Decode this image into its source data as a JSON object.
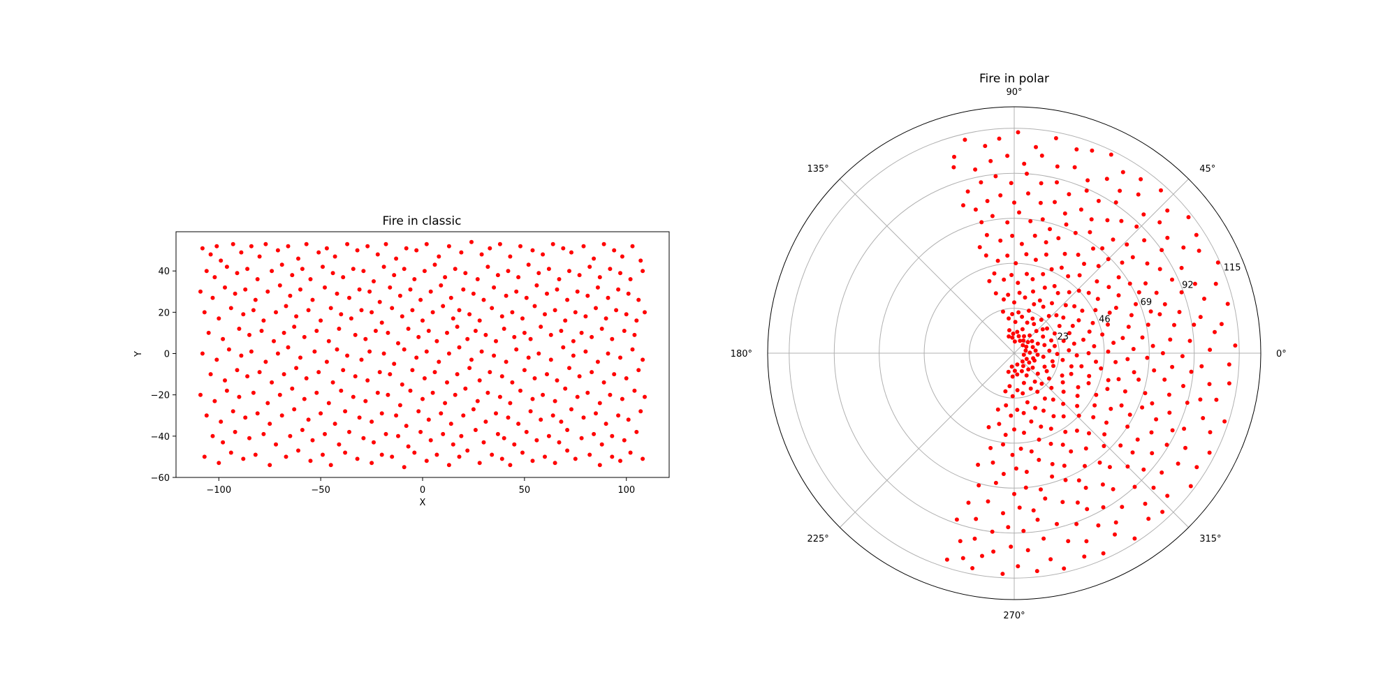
{
  "chart_data": [
    {
      "type": "scatter",
      "title": "Fire in classic",
      "xlabel": "X",
      "ylabel": "Y",
      "xlim": [
        -121,
        121
      ],
      "ylim": [
        -60,
        59
      ],
      "x_ticks": [
        -100,
        -50,
        0,
        50,
        100
      ],
      "x_tick_labels": [
        "−100",
        "−50",
        "0",
        "50",
        "100"
      ],
      "y_ticks": [
        -60,
        -40,
        -20,
        0,
        20,
        40
      ],
      "y_tick_labels": [
        "−60",
        "−40",
        "−20",
        "0",
        "20",
        "40"
      ],
      "grid": false,
      "marker_color": "#ff0000",
      "series": [
        {
          "x": [
            -108,
            -104,
            -101,
            -99,
            -93,
            -89,
            -84,
            -80,
            -77,
            -71,
            -66,
            -61,
            -57,
            -51,
            -47,
            -43,
            -37,
            -32,
            -27,
            -22,
            -18,
            -13,
            -8,
            -3,
            2,
            8,
            13,
            19,
            24,
            29,
            33,
            38,
            43,
            48,
            54,
            59,
            64,
            69,
            73,
            79,
            84,
            89,
            94,
            98,
            103,
            107,
            -106,
            -102,
            -96,
            -91,
            -86,
            -81,
            -74,
            -69,
            -64,
            -59,
            -55,
            -49,
            -44,
            -39,
            -34,
            -29,
            -24,
            -19,
            -14,
            -9,
            -4,
            1,
            6,
            11,
            16,
            21,
            27,
            32,
            37,
            42,
            47,
            52,
            57,
            62,
            67,
            72,
            77,
            82,
            87,
            92,
            97,
            102,
            108,
            -109,
            -103,
            -97,
            -92,
            -87,
            -82,
            -76,
            -70,
            -65,
            -60,
            -54,
            -48,
            -42,
            -36,
            -31,
            -26,
            -21,
            -16,
            -11,
            -6,
            -1,
            4,
            9,
            14,
            20,
            25,
            30,
            35,
            41,
            46,
            51,
            56,
            61,
            66,
            71,
            76,
            81,
            86,
            91,
            96,
            101,
            106,
            -107,
            -100,
            -94,
            -88,
            -83,
            -78,
            -72,
            -67,
            -62,
            -56,
            -50,
            -45,
            -40,
            -35,
            -30,
            -25,
            -20,
            -15,
            -10,
            -5,
            0,
            5,
            10,
            15,
            18,
            23,
            28,
            34,
            39,
            44,
            49,
            55,
            60,
            65,
            70,
            75,
            80,
            85,
            90,
            95,
            100,
            105,
            109,
            -105,
            -98,
            -90,
            -85,
            -79,
            -73,
            -68,
            -63,
            -58,
            -52,
            -46,
            -41,
            -33,
            -28,
            -23,
            -17,
            -12,
            -7,
            -2,
            3,
            7,
            12,
            17,
            22,
            26,
            31,
            36,
            40,
            45,
            50,
            53,
            58,
            63,
            68,
            74,
            78,
            83,
            88,
            93,
            99,
            104,
            -108,
            -101,
            -95,
            -89,
            -84,
            -77,
            -71,
            -66,
            -60,
            -53,
            -47,
            -42,
            -37,
            -30,
            -26,
            -19,
            -14,
            -9,
            -3,
            2,
            8,
            13,
            18,
            24,
            29,
            35,
            41,
            46,
            52,
            57,
            63,
            69,
            74,
            80,
            86,
            91,
            97,
            103,
            108,
            -104,
            -97,
            -91,
            -86,
            -80,
            -74,
            -68,
            -62,
            -57,
            -51,
            -44,
            -39,
            -33,
            -27,
            -21,
            -16,
            -10,
            -5,
            1,
            6,
            12,
            17,
            23,
            28,
            33,
            39,
            44,
            50,
            55,
            61,
            66,
            72,
            77,
            83,
            89,
            94,
            100,
            106,
            -109,
            -102,
            -96,
            -90,
            -83,
            -76,
            -70,
            -64,
            -58,
            -52,
            -46,
            -40,
            -34,
            -28,
            -22,
            -17,
            -11,
            -6,
            0,
            5,
            11,
            16,
            21,
            27,
            32,
            38,
            43,
            48,
            54,
            59,
            65,
            70,
            76,
            81,
            87,
            92,
            98,
            104,
            109,
            -106,
            -99,
            -93,
            -87,
            -81,
            -75,
            -69,
            -63,
            -56,
            -50,
            -43,
            -38,
            -31,
            -25,
            -20,
            -13,
            -8,
            -2,
            3,
            9,
            14,
            20,
            25,
            31,
            36,
            42,
            47,
            53,
            58,
            64,
            68,
            73,
            79,
            85,
            90,
            96,
            101,
            107,
            -103,
            -98,
            -92,
            -85,
            -78,
            -72,
            -65,
            -59,
            -54,
            -48,
            -41,
            -36,
            -29,
            -24,
            -18,
            -12,
            -7,
            -1,
            4,
            10,
            15,
            19,
            26,
            30,
            37,
            40,
            45,
            51,
            56,
            62,
            67,
            71,
            78,
            84,
            88,
            93,
            99,
            105,
            -107,
            -100,
            -94,
            -88,
            -82,
            -75,
            -67,
            -61,
            -55,
            -49,
            -45,
            -38,
            -32,
            -25,
            -20,
            -15,
            -9,
            -4,
            2,
            7,
            13,
            18,
            22,
            28,
            34,
            39,
            43,
            49,
            54,
            60,
            65,
            71,
            75,
            82,
            87,
            93,
            97,
            102,
            108
          ],
          "y": [
            51,
            48,
            52,
            45,
            53,
            49,
            52,
            47,
            53,
            50,
            52,
            46,
            53,
            49,
            51,
            47,
            53,
            50,
            52,
            48,
            53,
            46,
            51,
            50,
            53,
            47,
            52,
            49,
            54,
            48,
            51,
            53,
            47,
            52,
            50,
            48,
            53,
            51,
            49,
            52,
            46,
            53,
            50,
            47,
            52,
            45,
            40,
            37,
            42,
            39,
            41,
            36,
            40,
            43,
            38,
            41,
            36,
            42,
            39,
            37,
            41,
            40,
            35,
            42,
            38,
            41,
            36,
            40,
            43,
            37,
            41,
            39,
            36,
            42,
            38,
            40,
            37,
            43,
            39,
            41,
            36,
            40,
            38,
            42,
            37,
            41,
            39,
            36,
            40,
            30,
            27,
            32,
            29,
            31,
            26,
            30,
            33,
            28,
            31,
            26,
            32,
            29,
            27,
            31,
            30,
            25,
            32,
            28,
            31,
            26,
            30,
            33,
            27,
            31,
            29,
            26,
            32,
            28,
            30,
            27,
            33,
            29,
            31,
            26,
            30,
            28,
            32,
            27,
            31,
            29,
            26,
            20,
            17,
            22,
            19,
            21,
            16,
            20,
            23,
            18,
            21,
            16,
            22,
            19,
            17,
            21,
            20,
            15,
            22,
            18,
            21,
            16,
            20,
            23,
            17,
            21,
            19,
            16,
            22,
            18,
            20,
            17,
            23,
            19,
            21,
            16,
            20,
            18,
            22,
            17,
            21,
            19,
            16,
            20,
            10,
            7,
            12,
            9,
            11,
            6,
            10,
            13,
            8,
            11,
            6,
            12,
            9,
            7,
            11,
            10,
            5,
            12,
            8,
            11,
            6,
            10,
            13,
            7,
            11,
            9,
            6,
            12,
            8,
            10,
            7,
            13,
            9,
            11,
            6,
            10,
            8,
            12,
            7,
            11,
            9,
            0,
            -3,
            2,
            -1,
            1,
            -4,
            0,
            3,
            -2,
            1,
            -4,
            2,
            -1,
            -3,
            1,
            0,
            -5,
            2,
            -2,
            1,
            -4,
            0,
            3,
            -3,
            1,
            -1,
            -4,
            2,
            -2,
            0,
            -3,
            3,
            -1,
            1,
            -4,
            0,
            -2,
            2,
            -3,
            -10,
            -13,
            -8,
            -11,
            -9,
            -14,
            -10,
            -7,
            -12,
            -9,
            -14,
            -8,
            -11,
            -13,
            -9,
            -10,
            -15,
            -8,
            -12,
            -9,
            -14,
            -10,
            -7,
            -13,
            -9,
            -11,
            -14,
            -8,
            -12,
            -10,
            -13,
            -7,
            -11,
            -9,
            -14,
            -10,
            -12,
            -8,
            -20,
            -23,
            -18,
            -21,
            -19,
            -24,
            -20,
            -17,
            -22,
            -19,
            -24,
            -18,
            -21,
            -23,
            -19,
            -20,
            -25,
            -18,
            -22,
            -19,
            -24,
            -20,
            -17,
            -23,
            -19,
            -21,
            -24,
            -18,
            -22,
            -20,
            -23,
            -17,
            -21,
            -19,
            -24,
            -20,
            -22,
            -18,
            -21,
            -30,
            -33,
            -28,
            -31,
            -29,
            -34,
            -30,
            -27,
            -32,
            -29,
            -34,
            -28,
            -31,
            -33,
            -29,
            -30,
            -35,
            -28,
            -32,
            -29,
            -34,
            -30,
            -27,
            -33,
            -29,
            -31,
            -34,
            -28,
            -32,
            -30,
            -33,
            -27,
            -31,
            -29,
            -34,
            -30,
            -32,
            -28,
            -40,
            -43,
            -38,
            -41,
            -39,
            -44,
            -40,
            -37,
            -42,
            -39,
            -44,
            -38,
            -41,
            -43,
            -39,
            -40,
            -45,
            -38,
            -42,
            -39,
            -44,
            -40,
            -37,
            -43,
            -39,
            -41,
            -44,
            -38,
            -42,
            -40,
            -43,
            -37,
            -41,
            -39,
            -44,
            -40,
            -42,
            -38,
            -50,
            -53,
            -48,
            -51,
            -49,
            -54,
            -50,
            -47,
            -52,
            -49,
            -54,
            -48,
            -51,
            -53,
            -49,
            -50,
            -55,
            -48,
            -52,
            -49,
            -54,
            -50,
            -47,
            -53,
            -49,
            -51,
            -54,
            -48,
            -52,
            -50,
            -53,
            -47,
            -51,
            -49,
            -54,
            -50,
            -52,
            -48,
            -51
          ]
        }
      ]
    },
    {
      "type": "scatter",
      "projection": "polar",
      "title": "Fire in polar",
      "rmax": 126,
      "r_ticks": [
        23,
        46,
        69,
        92,
        115
      ],
      "r_tick_labels": [
        "23",
        "46",
        "69",
        "92",
        "115"
      ],
      "theta_ticks_deg": [
        0,
        45,
        90,
        135,
        180,
        225,
        270,
        315
      ],
      "theta_tick_labels": [
        "0°",
        "45°",
        "90°",
        "135°",
        "180°",
        "225°",
        "270°",
        "315°"
      ],
      "grid": true,
      "marker_color": "#ff0000",
      "note_same_points_as": "classic (x, y) plotted in polar coordinates"
    }
  ]
}
